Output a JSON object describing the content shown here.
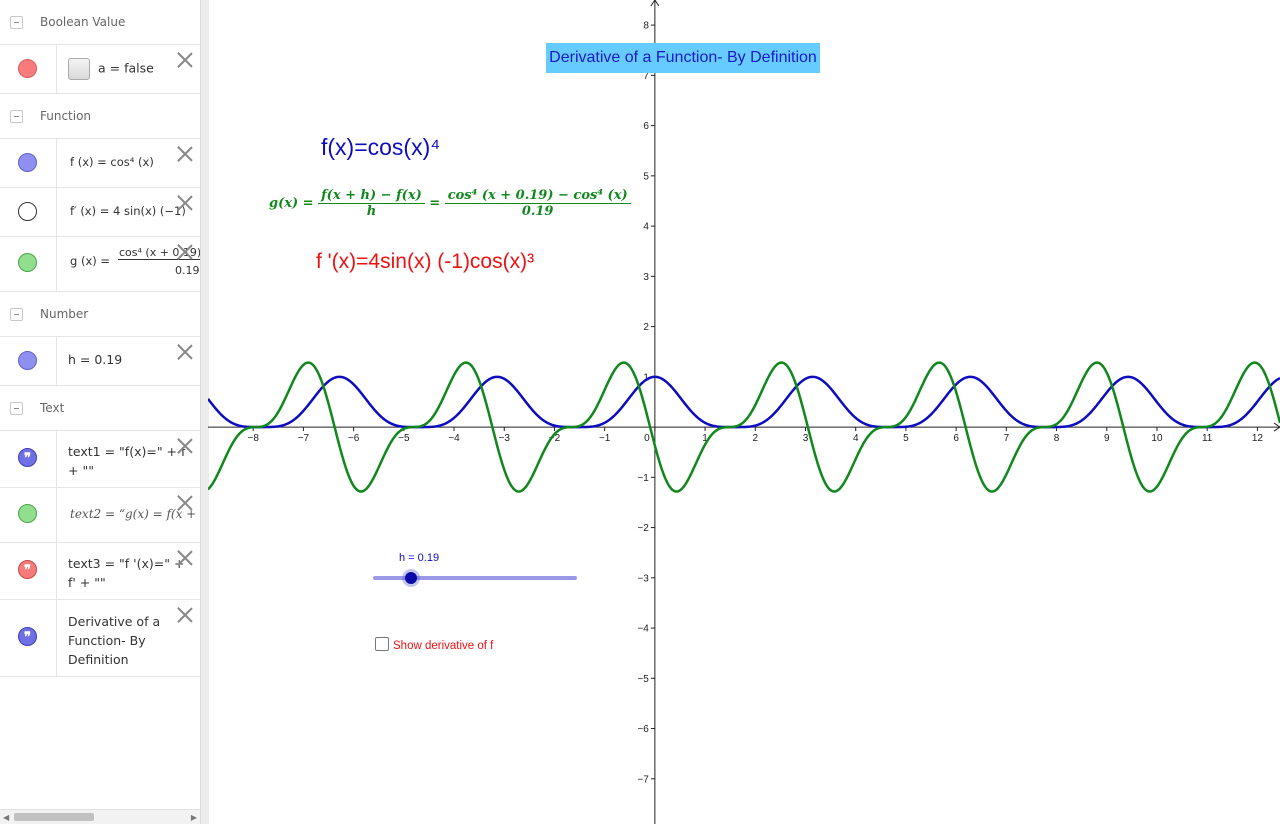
{
  "algebra": {
    "categories": {
      "boolean": "Boolean Value",
      "function": "Function",
      "number": "Number",
      "text": "Text"
    },
    "items": {
      "a": "a = false",
      "f": "f (x) = cos⁴ (x)",
      "fprime": "f′ (x) = 4 sin(x) (−1)",
      "g_left": "g (x) =",
      "g_num": "cos⁴ (x + 0.19)",
      "g_den": "0.19",
      "h": "h = 0.19",
      "text1_line1": "text1 = \"f(x)=\" + f",
      "text1_line2": "+ \"\"",
      "text2": "text2 = “g(x) = f(x +",
      "text3_line1": "text3 = \"f '(x)=\" +",
      "text3_line2": "f' + \"\"",
      "title_text_line1": "Derivative of a",
      "title_text_line2": "Function- By",
      "title_text_line3": "Definition"
    },
    "colors": {
      "a": "#f77b7b",
      "f": "#8f8ff0",
      "fprime": "#ffffff",
      "g": "#8fdf8f",
      "h": "#8f8ff0",
      "text1": "#6f6fe6",
      "text2": "#8fdf8f",
      "text3": "#f77b7b",
      "title_text": "#6f6fe6"
    }
  },
  "graphics": {
    "title": "Derivative of a Function- By Definition",
    "f_text": "f(x)=cos(x)⁴",
    "fprime_text": "f '(x)=4sin(x) (-1)cos(x)³",
    "g_text": {
      "lhs": "g(x) =",
      "num1": "f(x + h) − f(x)",
      "den1": "h",
      "eq": "=",
      "num2": "cos⁴ (x + 0.19) − cos⁴ (x)",
      "den2": "0.19"
    },
    "slider_label": "h = 0.19",
    "slider_value": 0.19,
    "checkbox_label": "Show derivative of f",
    "checkbox_checked": false
  },
  "chart_data": {
    "type": "line",
    "x_ticks": [
      -8,
      -7,
      -6,
      -5,
      -4,
      -3,
      -2,
      -1,
      0,
      1,
      2,
      3,
      4,
      5,
      6,
      7,
      8,
      9,
      10,
      11,
      12
    ],
    "y_ticks": [
      -7,
      -6,
      -5,
      -4,
      -3,
      -2,
      -1,
      1,
      2,
      3,
      4,
      5,
      6,
      7,
      8
    ],
    "xlim": [
      -8.9,
      12.45
    ],
    "ylim": [
      -7.9,
      8.5
    ],
    "grid": false,
    "series": [
      {
        "name": "f",
        "color": "#0d0dbf",
        "expression": "cos(x)^4",
        "h": 0
      },
      {
        "name": "g",
        "color": "#11881d",
        "expression": "(cos(x+h)^4 - cos(x)^4)/h",
        "h": 0.19
      }
    ]
  }
}
